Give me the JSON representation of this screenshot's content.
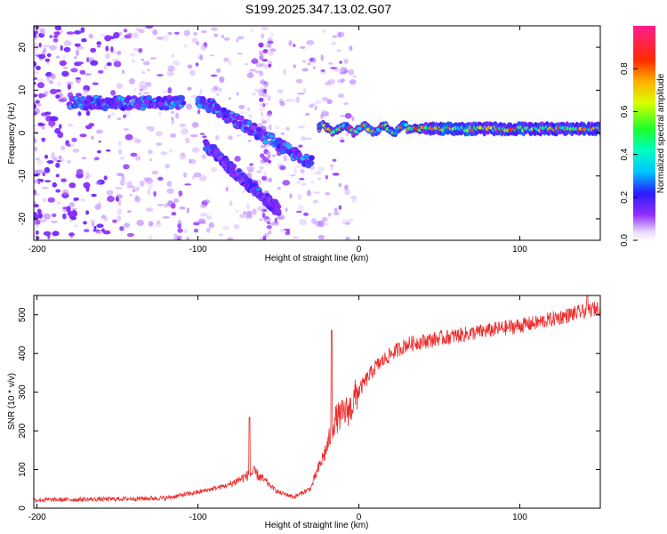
{
  "title": "S199.2025.347.13.02.G07",
  "colors": {
    "snr_line": "#ee2a2a",
    "axis": "#000000",
    "background": "#ffffff"
  },
  "chart_data": [
    {
      "type": "heatmap",
      "name": "spectrogram",
      "xlabel": "Height of straight line (km)",
      "ylabel": "Frequency (Hz)",
      "xlim": [
        -202,
        150
      ],
      "ylim": [
        -25,
        25
      ],
      "x_ticks": [
        -200,
        -100,
        0,
        100
      ],
      "y_ticks": [
        -20,
        -10,
        0,
        10,
        20
      ],
      "colorbar": {
        "label": "Normalized spectral amplitude",
        "range": [
          0,
          1
        ],
        "ticks": [
          0.0,
          0.2,
          0.4,
          0.6,
          0.8
        ],
        "tick_labels": [
          "0.0",
          "0.2",
          "0.4",
          "0.6",
          "0.8"
        ],
        "colormap": "rainbow (white-violet-blue-cyan-green-yellow-red-magenta)"
      },
      "features": [
        {
          "name": "direct-signal-band",
          "x_range": [
            -25,
            150
          ],
          "freq_hz": 1,
          "amplitude_peak": 0.9
        },
        {
          "name": "left-flat-band",
          "x_range": [
            -180,
            -110
          ],
          "freq_hz": 7,
          "amplitude_peak": 0.35
        },
        {
          "name": "descending-branch",
          "x_range": [
            -100,
            -30
          ],
          "freq_hz_range": [
            8,
            -7
          ],
          "amplitude_peak": 0.35
        },
        {
          "name": "lower-descending-branch",
          "x_range": [
            -95,
            -50
          ],
          "freq_hz_range": [
            -3,
            -18
          ],
          "amplitude_peak": 0.3
        }
      ]
    },
    {
      "type": "line",
      "name": "snr",
      "xlabel": "Height of straight line (km)",
      "ylabel": "SNR (10 * v/v)",
      "xlim": [
        -202,
        150
      ],
      "ylim": [
        0,
        550
      ],
      "x_ticks": [
        -200,
        -100,
        0,
        100
      ],
      "y_ticks": [
        0,
        100,
        200,
        300,
        400,
        500
      ],
      "trend": [
        {
          "x": -200,
          "y": 20
        },
        {
          "x": -160,
          "y": 22
        },
        {
          "x": -120,
          "y": 25
        },
        {
          "x": -100,
          "y": 40
        },
        {
          "x": -80,
          "y": 60
        },
        {
          "x": -65,
          "y": 90
        },
        {
          "x": -50,
          "y": 40
        },
        {
          "x": -40,
          "y": 28
        },
        {
          "x": -30,
          "y": 50
        },
        {
          "x": -20,
          "y": 150
        },
        {
          "x": -15,
          "y": 220
        },
        {
          "x": -5,
          "y": 250
        },
        {
          "x": 0,
          "y": 300
        },
        {
          "x": 10,
          "y": 360
        },
        {
          "x": 20,
          "y": 395
        },
        {
          "x": 30,
          "y": 420
        },
        {
          "x": 50,
          "y": 435
        },
        {
          "x": 80,
          "y": 455
        },
        {
          "x": 110,
          "y": 475
        },
        {
          "x": 130,
          "y": 495
        },
        {
          "x": 150,
          "y": 515
        }
      ],
      "notable_spikes": [
        {
          "x": -68,
          "y": 235
        },
        {
          "x": -17,
          "y": 460
        },
        {
          "x": 142,
          "y": 555
        }
      ]
    }
  ]
}
